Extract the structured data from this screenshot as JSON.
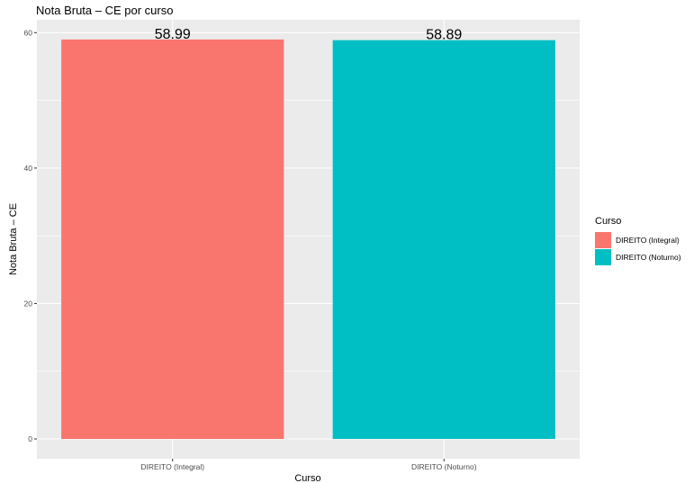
{
  "chart_data": {
    "type": "bar",
    "title": "Nota Bruta – CE por curso",
    "xlabel": "Curso",
    "ylabel": "Nota Bruta – CE",
    "categories": [
      "DIREITO (Integral)",
      "DIREITO (Noturno)"
    ],
    "values": [
      58.99,
      58.89
    ],
    "data_labels": [
      "58.99",
      "58.89"
    ],
    "colors": [
      "#F8766D",
      "#00BFC4"
    ],
    "ylim": [
      0,
      61.9
    ],
    "y_ticks": [
      0,
      20,
      40,
      60
    ],
    "grid": true,
    "panel_background": "#EBEBEB",
    "legend": {
      "title": "Curso",
      "position": "right",
      "entries": [
        "DIREITO (Integral)",
        "DIREITO (Noturno)"
      ]
    }
  }
}
